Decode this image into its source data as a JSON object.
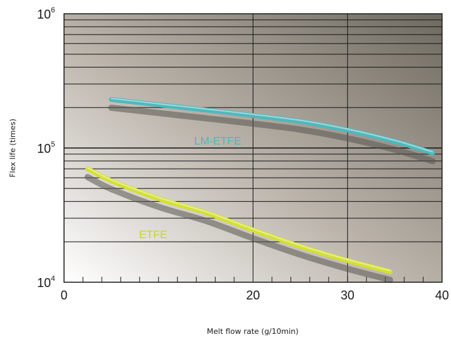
{
  "chart_data": {
    "type": "line",
    "xlabel": "Melt flow rate (g/10min)",
    "ylabel": "Flex life (times)",
    "x_ticks": [
      0,
      20,
      30,
      40
    ],
    "y_ticks": [
      {
        "value": 10000,
        "base": "10",
        "exp": "4"
      },
      {
        "value": 100000,
        "base": "10",
        "exp": "5"
      },
      {
        "value": 1000000,
        "base": "10",
        "exp": "6"
      }
    ],
    "xlim": [
      0,
      40
    ],
    "ylim": [
      10000,
      1000000
    ],
    "y_scale": "log",
    "grid": true,
    "series": [
      {
        "name": "LM-ETFE",
        "color": "#4fb8bd",
        "x": [
          5,
          10,
          15,
          20,
          25,
          30,
          35,
          39
        ],
        "y": [
          230000,
          210000,
          192000,
          175000,
          158000,
          136000,
          112000,
          92000
        ]
      },
      {
        "name": "ETFE",
        "color": "#d4e033",
        "x": [
          2.5,
          5,
          10,
          15,
          20,
          25,
          30,
          34.5
        ],
        "y": [
          70000,
          57000,
          42000,
          33000,
          24500,
          18500,
          14500,
          12000
        ]
      }
    ]
  }
}
